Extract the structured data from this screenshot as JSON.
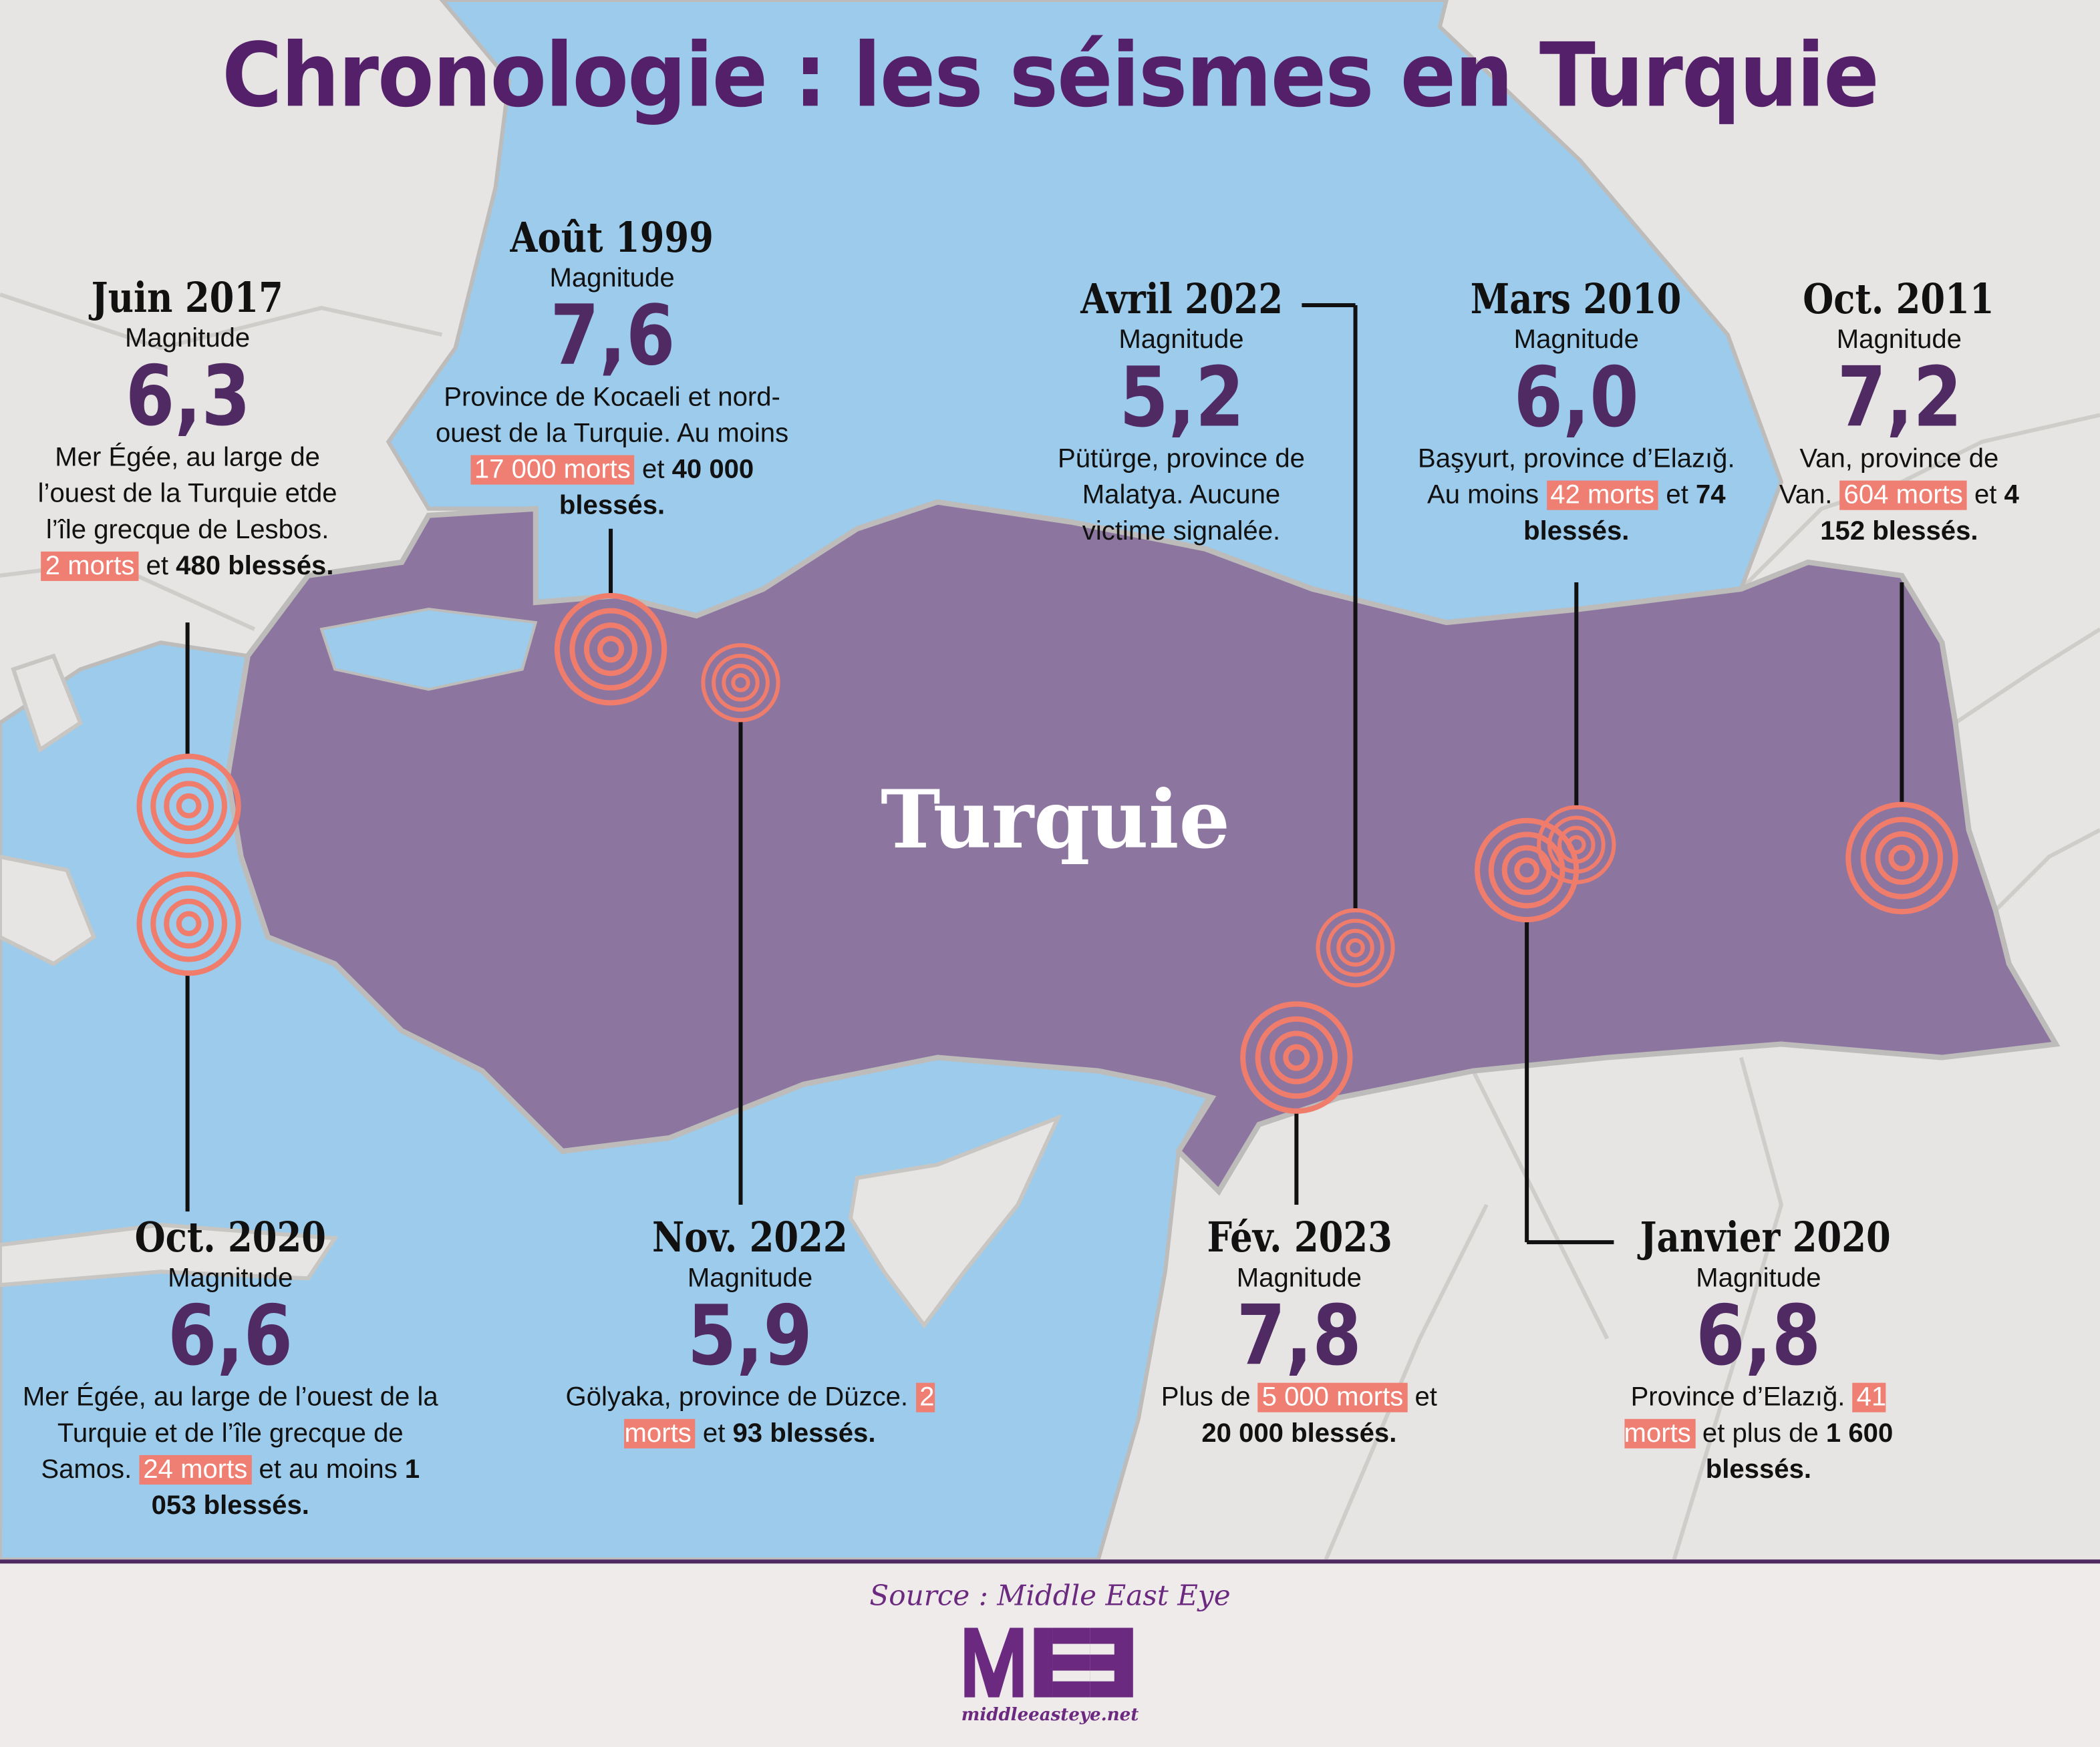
{
  "title": "Chronologie : les séismes en Turquie",
  "country_label": "Turquie",
  "colors": {
    "sea": "#9ccbeb",
    "land": "#e6e5e3",
    "turkey": "#8c76a0",
    "accent": "#ef7f72",
    "magnitude": "#4f2a63",
    "title": "#55206a"
  },
  "magnitude_label": "Magnitude",
  "events": [
    {
      "date": "Juin 2017",
      "magnitude": "6,3",
      "description": [
        {
          "t": "Mer Égée, au large de l’ouest de la Turquie etde l’île grecque de Lesbos. "
        },
        {
          "t": "2 morts",
          "hl": true
        },
        {
          "t": " et "
        },
        {
          "t": "480 blessés.",
          "b": true
        }
      ]
    },
    {
      "date": "Août 1999",
      "magnitude": "7,6",
      "description": [
        {
          "t": "Province de Kocaeli et nord-ouest de la Turquie. Au moins "
        },
        {
          "t": "17 000 morts",
          "hl": true
        },
        {
          "t": " et "
        },
        {
          "t": "40 000 blessés.",
          "b": true
        }
      ]
    },
    {
      "date": "Avril 2022",
      "magnitude": "5,2",
      "description": [
        {
          "t": "Pütürge, province de Malatya. Aucune victime signalée."
        }
      ]
    },
    {
      "date": "Mars 2010",
      "magnitude": "6,0",
      "description": [
        {
          "t": "Başyurt, province d’Elazığ. Au moins "
        },
        {
          "t": "42 morts",
          "hl": true
        },
        {
          "t": " et "
        },
        {
          "t": "74 blessés.",
          "b": true
        }
      ]
    },
    {
      "date": "Oct. 2011",
      "magnitude": "7,2",
      "description": [
        {
          "t": "Van, province de Van. "
        },
        {
          "t": "604 morts",
          "hl": true
        },
        {
          "t": " et "
        },
        {
          "t": "4 152 blessés.",
          "b": true
        }
      ]
    },
    {
      "date": "Oct. 2020",
      "magnitude": "6,6",
      "description": [
        {
          "t": "Mer Égée, au large de l’ouest de la Turquie et de l’île grecque de Samos. "
        },
        {
          "t": "24 morts",
          "hl": true
        },
        {
          "t": " et au moins "
        },
        {
          "t": "1 053 blessés.",
          "b": true
        }
      ]
    },
    {
      "date": "Nov. 2022",
      "magnitude": "5,9",
      "description": [
        {
          "t": "Gölyaka, province de Düzce. "
        },
        {
          "t": "2 morts",
          "hl": true
        },
        {
          "t": " et "
        },
        {
          "t": "93 blessés.",
          "b": true
        }
      ]
    },
    {
      "date": "Fév. 2023",
      "magnitude": "7,8",
      "description": [
        {
          "t": "Plus de "
        },
        {
          "t": "5 000 morts",
          "hl": true
        },
        {
          "t": " et "
        },
        {
          "t": "20 000 blessés.",
          "b": true
        }
      ]
    },
    {
      "date": "Janvier 2020",
      "magnitude": "6,8",
      "description": [
        {
          "t": "Province d’Elazığ. "
        },
        {
          "t": "41 morts",
          "hl": true
        },
        {
          "t": " et plus de "
        },
        {
          "t": "1 600 blessés.",
          "b": true
        }
      ]
    }
  ],
  "footer": {
    "source": "Source : Middle East Eye",
    "logo_text": "MEE",
    "url": "middleeasteye.net"
  }
}
